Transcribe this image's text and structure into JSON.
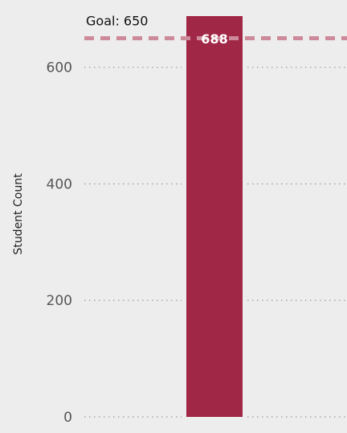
{
  "chart_data": {
    "type": "bar",
    "categories": [
      ""
    ],
    "values": [
      688
    ],
    "data_labels": [
      "688"
    ],
    "ylabel": "Student Count",
    "ylim": [
      0,
      688
    ],
    "yticks": [
      0,
      200,
      400,
      600
    ],
    "ytick_labels": [
      "0",
      "200",
      "400",
      "600"
    ],
    "grid": true,
    "grid_style": "dotted",
    "goal": {
      "value": 650,
      "label": "Goal: 650"
    },
    "colors": {
      "bar": "#A12746",
      "goal_line": "#CC8A9A",
      "grid": "#999999",
      "background": "#ECEDEC"
    }
  }
}
